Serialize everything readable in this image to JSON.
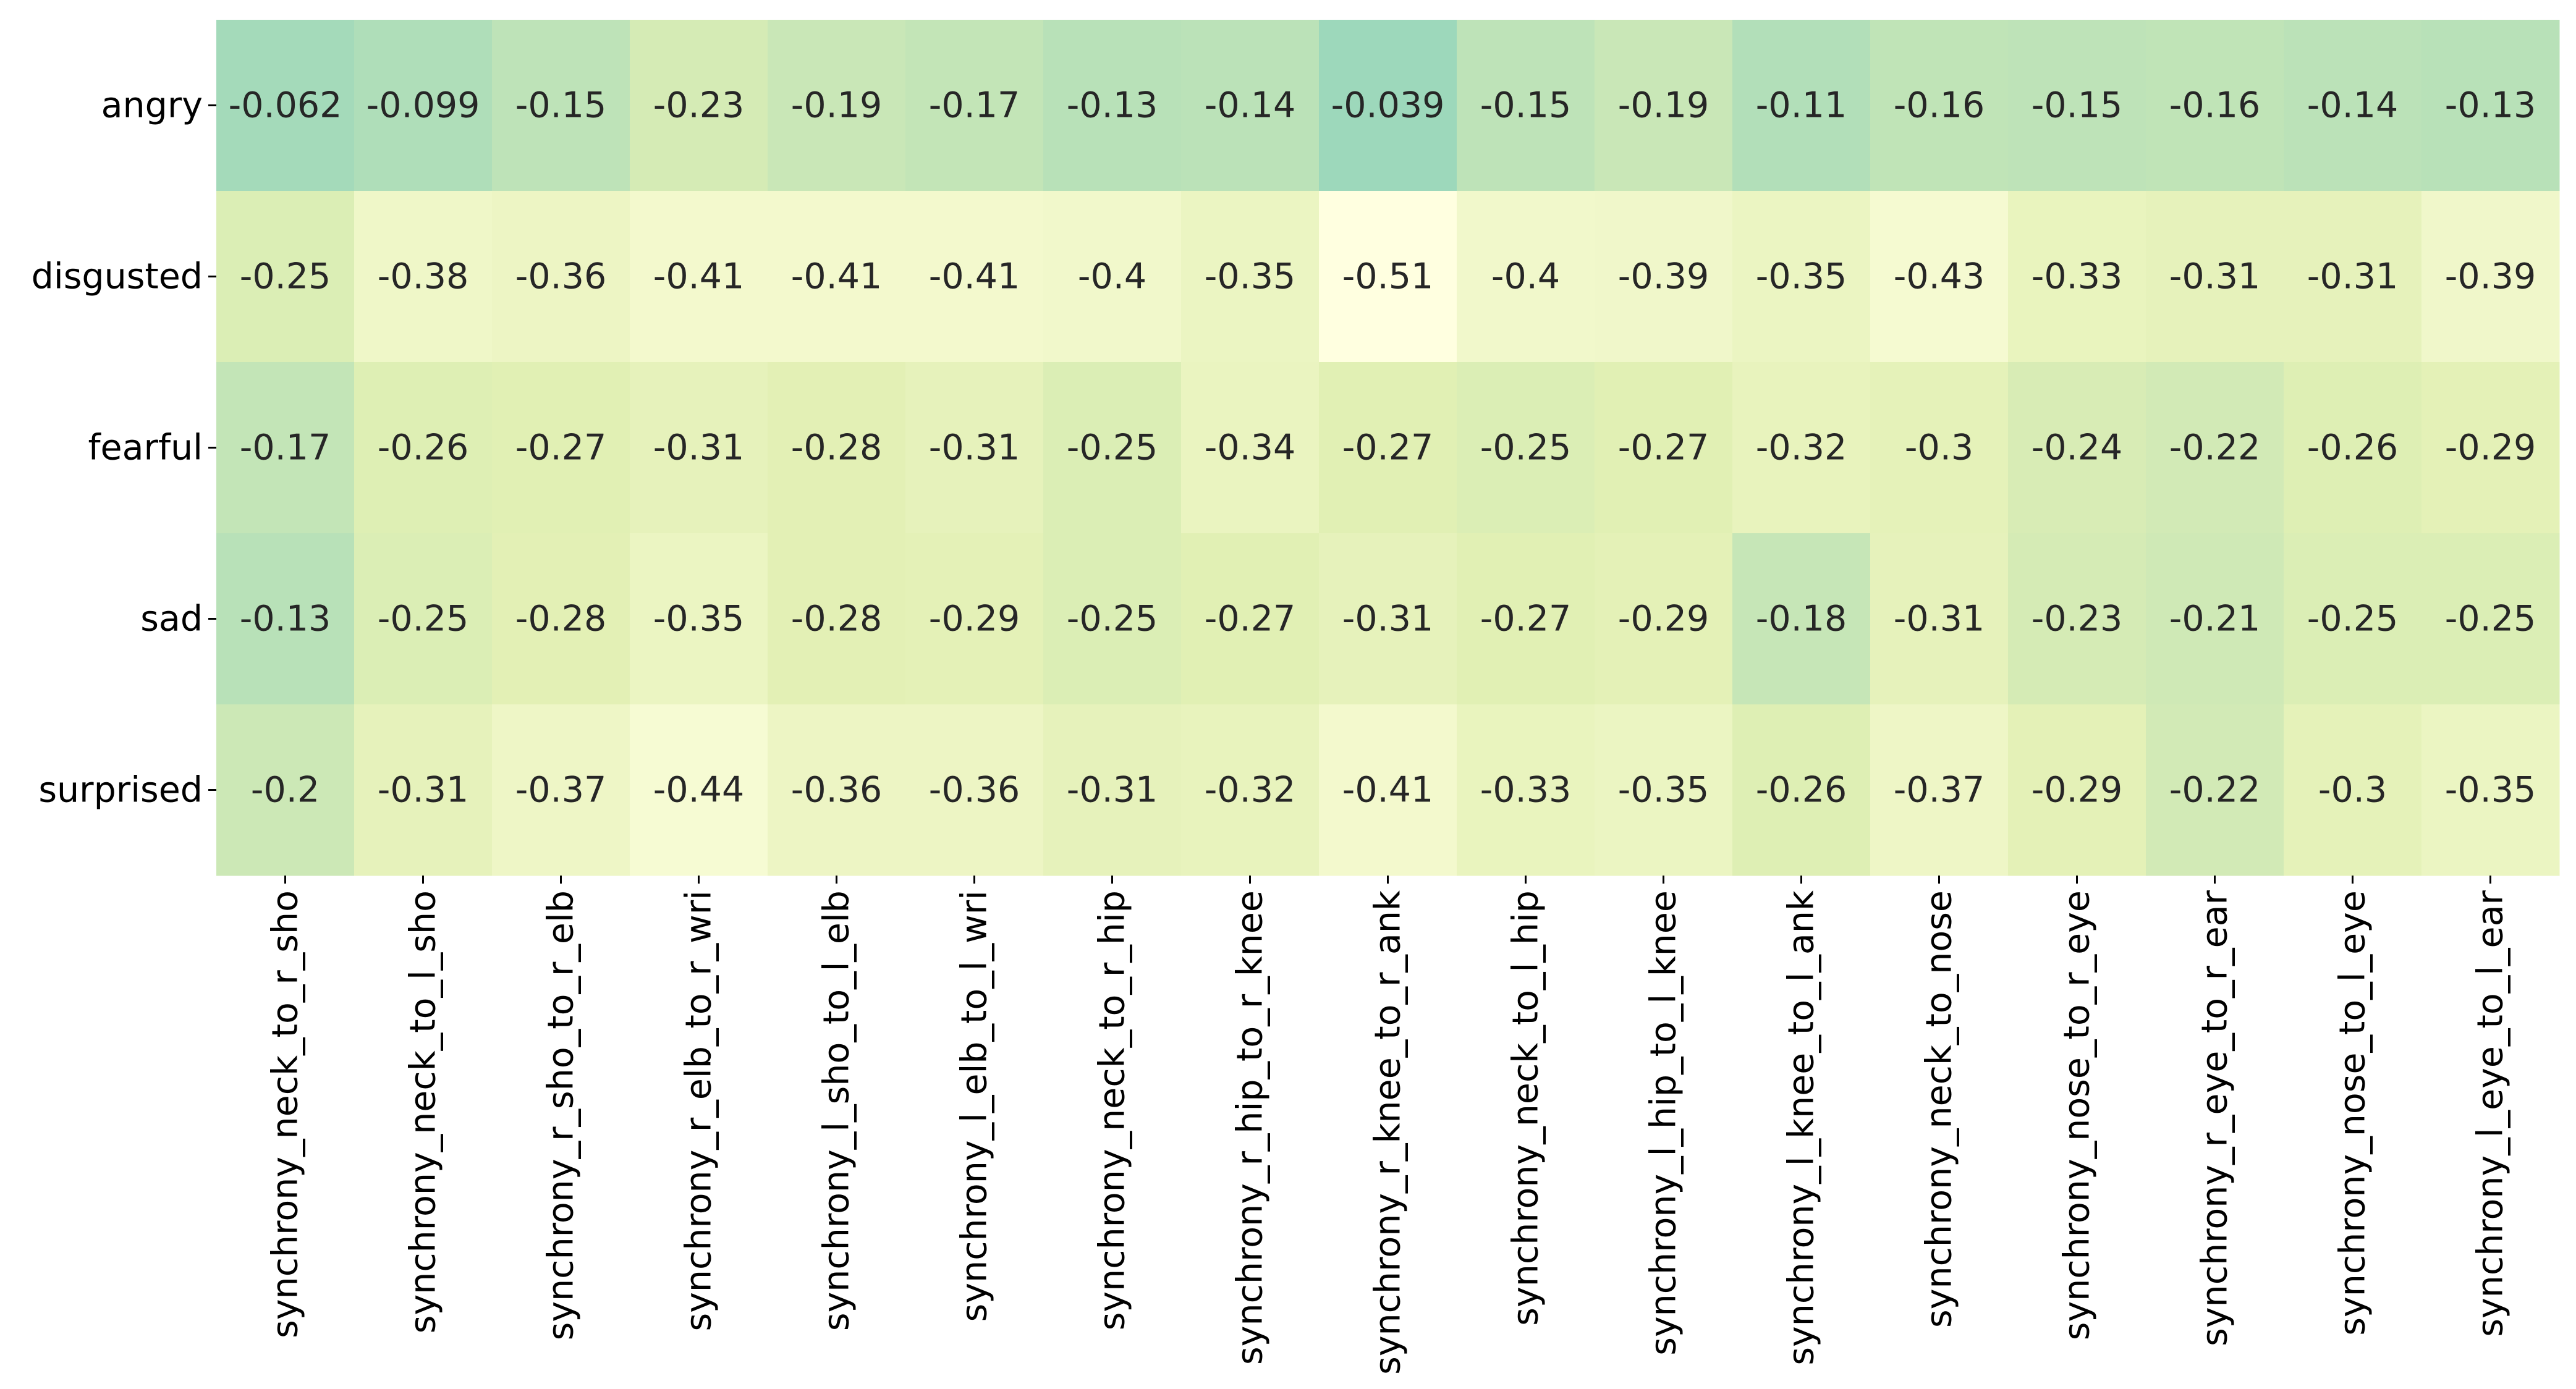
{
  "chart_data": {
    "type": "heatmap",
    "rows": [
      "angry",
      "disgusted",
      "fearful",
      "sad",
      "surprised"
    ],
    "columns": [
      "synchrony_neck_to_r_sho",
      "synchrony_neck_to_l_sho",
      "synchrony_r_sho_to_r_elb",
      "synchrony_r_elb_to_r_wri",
      "synchrony_l_sho_to_l_elb",
      "synchrony_l_elb_to_l_wri",
      "synchrony_neck_to_r_hip",
      "synchrony_r_hip_to_r_knee",
      "synchrony_r_knee_to_r_ank",
      "synchrony_neck_to_l_hip",
      "synchrony_l_hip_to_l_knee",
      "synchrony_l_knee_to_l_ank",
      "synchrony_neck_to_nose",
      "synchrony_nose_to_r_eye",
      "synchrony_r_eye_to_r_ear",
      "synchrony_nose_to_l_eye",
      "synchrony_l_eye_to_l_ear"
    ],
    "values": [
      [
        -0.062,
        -0.099,
        -0.15,
        -0.23,
        -0.19,
        -0.17,
        -0.13,
        -0.14,
        -0.039,
        -0.15,
        -0.19,
        -0.11,
        -0.16,
        -0.15,
        -0.16,
        -0.14,
        -0.13
      ],
      [
        -0.25,
        -0.38,
        -0.36,
        -0.41,
        -0.41,
        -0.41,
        -0.4,
        -0.35,
        -0.51,
        -0.4,
        -0.39,
        -0.35,
        -0.43,
        -0.33,
        -0.31,
        -0.31,
        -0.39
      ],
      [
        -0.17,
        -0.26,
        -0.27,
        -0.31,
        -0.28,
        -0.31,
        -0.25,
        -0.34,
        -0.27,
        -0.25,
        -0.27,
        -0.32,
        -0.3,
        -0.24,
        -0.22,
        -0.26,
        -0.29
      ],
      [
        -0.13,
        -0.25,
        -0.28,
        -0.35,
        -0.28,
        -0.29,
        -0.25,
        -0.27,
        -0.31,
        -0.27,
        -0.29,
        -0.18,
        -0.31,
        -0.23,
        -0.21,
        -0.25,
        -0.25
      ],
      [
        -0.2,
        -0.31,
        -0.37,
        -0.44,
        -0.36,
        -0.36,
        -0.31,
        -0.32,
        -0.41,
        -0.33,
        -0.35,
        -0.26,
        -0.37,
        -0.29,
        -0.22,
        -0.3,
        -0.35
      ]
    ],
    "value_range": [
      -0.51,
      -0.039
    ],
    "colormap": {
      "low": "#ffffe0",
      "mid": "#e2f0b4",
      "high": "#9dd8bb"
    },
    "colorbar": false,
    "annotations": true
  }
}
